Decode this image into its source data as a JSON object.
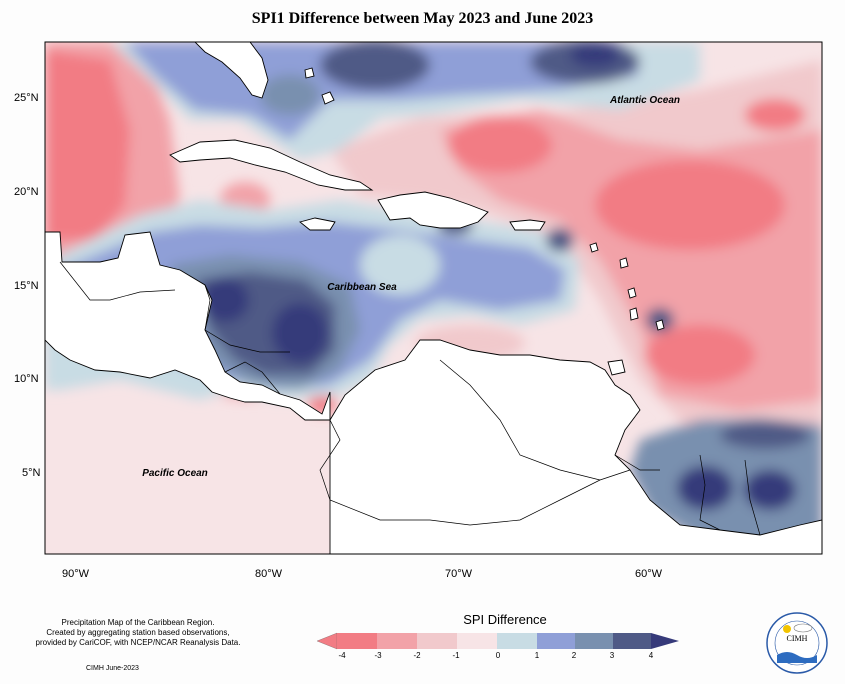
{
  "title": "SPI1 Difference between May 2023 and June 2023",
  "map": {
    "region": "Caribbean",
    "lat_labels": [
      "25°N",
      "20°N",
      "15°N",
      "10°N",
      "5°N"
    ],
    "lon_labels": [
      "90°W",
      "80°W",
      "70°W",
      "60°W"
    ],
    "place_labels": {
      "atlantic": "Atlantic Ocean",
      "caribbean": "Caribbean Sea",
      "pacific": "Pacific Ocean"
    }
  },
  "legend": {
    "title": "SPI Difference",
    "ticks": [
      "-4",
      "-3",
      "-2",
      "-1",
      "0",
      "1",
      "2",
      "3",
      "4"
    ],
    "colors": [
      "#f27c84",
      "#f2a2a8",
      "#f1c9cc",
      "#f7e4e6",
      "#c8dce4",
      "#8f9fd7",
      "#7990af",
      "#4f5a86",
      "#363a7a"
    ]
  },
  "notes": {
    "line1": "Precipitation Map of the Caribbean Region.",
    "line2": "Created by aggregating station based observations,",
    "line3": "provided by CariCOF, with NCEP/NCAR Reanalysis Data.",
    "credit": "CIMH June-2023"
  },
  "logo": {
    "text": "CIMH"
  }
}
